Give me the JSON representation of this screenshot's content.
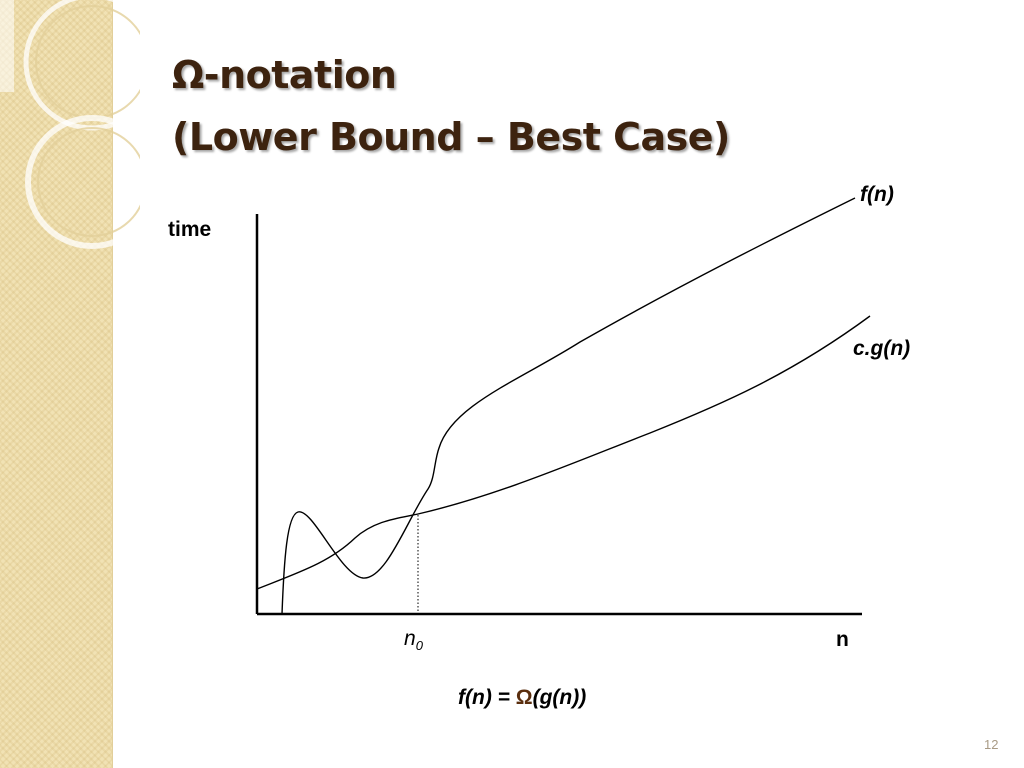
{
  "slide": {
    "title_line1": "Ω-notation",
    "title_line2": "(Lower Bound – Best Case)",
    "slide_number": "12",
    "colors": {
      "title": "#3d230f",
      "side_panel": "#f1e2b4",
      "omega_accent": "#5a2e0e"
    }
  },
  "diagram": {
    "y_axis_label": "time",
    "x_axis_label": "n",
    "threshold_label_base": "n",
    "threshold_label_sub": "0",
    "curve_upper_label": "f(n)",
    "curve_lower_label": "c.g(n)",
    "formula_prefix": "f(n) = ",
    "formula_symbol": "Ω",
    "formula_suffix": "(g(n))"
  }
}
